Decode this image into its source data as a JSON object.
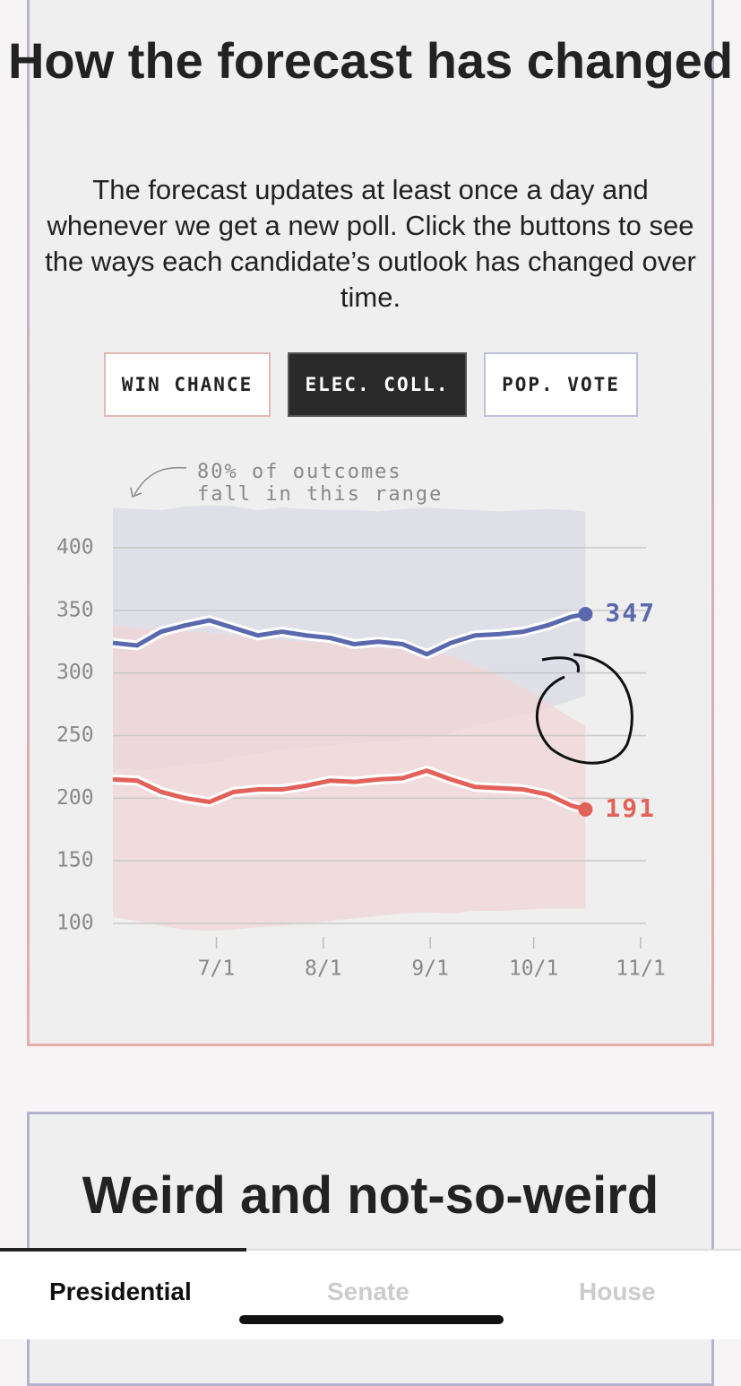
{
  "header": {
    "title": "How the forecast has changed",
    "description": "The forecast updates at least once a day and whenever we get a new poll. Click the buttons to see the ways each candidate’s outlook has changed over time."
  },
  "buttons": [
    "WIN CHANCE",
    "ELEC. COLL.",
    "POP. VOTE"
  ],
  "chart_data": {
    "type": "line",
    "annotation": [
      "80% of outcomes",
      "fall in this range"
    ],
    "x": [
      "6/1",
      "6/8",
      "6/15",
      "6/22",
      "6/29",
      "7/6",
      "7/13",
      "7/20",
      "7/27",
      "8/3",
      "8/10",
      "8/17",
      "8/24",
      "8/31",
      "9/7",
      "9/14",
      "9/21",
      "9/28",
      "10/5",
      "10/12",
      "10/16"
    ],
    "series": [
      {
        "color": "#5a68ad",
        "band_color": "#d9dae6",
        "values": [
          324,
          322,
          333,
          338,
          342,
          336,
          330,
          333,
          330,
          328,
          323,
          325,
          323,
          315,
          324,
          330,
          331,
          333,
          338,
          345,
          347
        ],
        "low": [
          225,
          222,
          224,
          226,
          228,
          232,
          236,
          238,
          240,
          242,
          244,
          245,
          246,
          248,
          252,
          258,
          262,
          266,
          272,
          278,
          282
        ],
        "high": [
          432,
          431,
          430,
          433,
          434,
          433,
          430,
          432,
          431,
          430,
          430,
          429,
          431,
          432,
          431,
          430,
          429,
          430,
          431,
          430,
          429
        ]
      },
      {
        "color": "#e2625a",
        "band_color": "#f0d6d6",
        "values": [
          215,
          214,
          205,
          200,
          197,
          205,
          207,
          207,
          210,
          214,
          213,
          215,
          216,
          222,
          215,
          209,
          208,
          207,
          203,
          194,
          191
        ],
        "low": [
          105,
          102,
          98,
          95,
          94,
          95,
          97,
          98,
          100,
          102,
          104,
          106,
          108,
          109,
          108,
          110,
          110,
          111,
          112,
          112,
          112
        ],
        "high": [
          338,
          336,
          334,
          333,
          332,
          330,
          328,
          326,
          325,
          324,
          322,
          320,
          320,
          318,
          314,
          306,
          298,
          288,
          276,
          264,
          258
        ]
      }
    ],
    "xlim": [
      "6/1",
      "11/1"
    ],
    "xticks": [
      "7/1",
      "8/1",
      "9/1",
      "10/1",
      "11/1"
    ],
    "ylim": [
      100,
      400
    ],
    "yticks": [
      100,
      150,
      200,
      250,
      300,
      350,
      400
    ],
    "grid": true
  },
  "section2": {
    "title": "Weird and not-so-weird"
  },
  "tabs": [
    "Presidential",
    "Senate",
    "House"
  ]
}
